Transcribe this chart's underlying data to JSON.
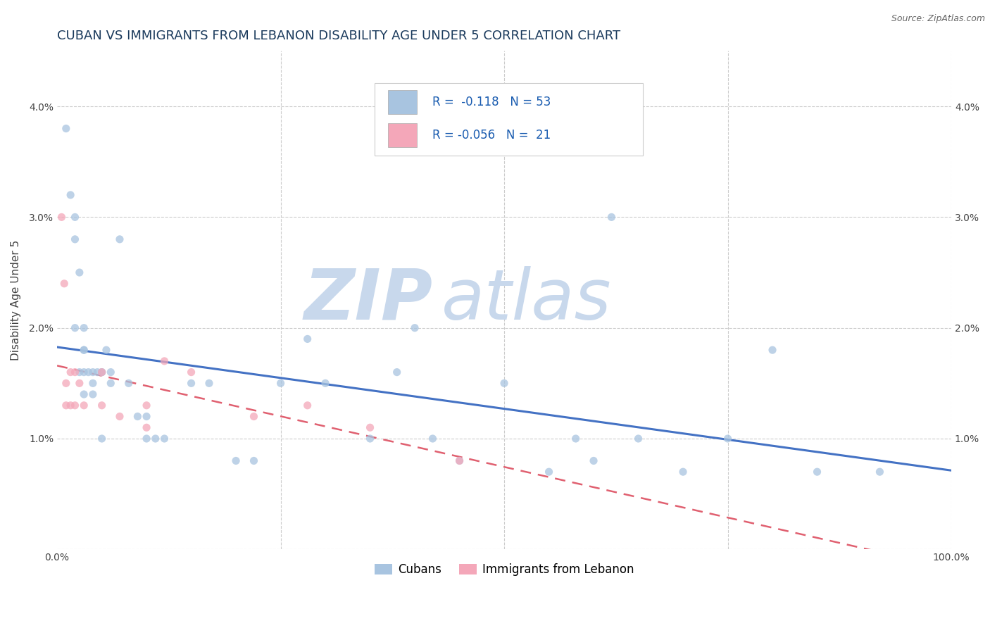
{
  "title": "CUBAN VS IMMIGRANTS FROM LEBANON DISABILITY AGE UNDER 5 CORRELATION CHART",
  "source": "Source: ZipAtlas.com",
  "ylabel": "Disability Age Under 5",
  "legend_label1": "Cubans",
  "legend_label2": "Immigrants from Lebanon",
  "r1": "-0.118",
  "n1": "53",
  "r2": "-0.056",
  "n2": "21",
  "xlim": [
    0,
    1.0
  ],
  "ylim": [
    0,
    0.045
  ],
  "xticks": [
    0.0,
    0.25,
    0.5,
    0.75,
    1.0
  ],
  "xticklabels": [
    "0.0%",
    "",
    "",
    "",
    "100.0%"
  ],
  "yticks": [
    0.0,
    0.01,
    0.02,
    0.03,
    0.04
  ],
  "yticklabels": [
    "",
    "1.0%",
    "2.0%",
    "3.0%",
    "4.0%"
  ],
  "color_blue": "#a8c4e0",
  "color_pink": "#f4a7b9",
  "line_blue": "#4472c4",
  "line_pink": "#e06070",
  "background_color": "#ffffff",
  "grid_color": "#cccccc",
  "cubans_x": [
    0.01,
    0.015,
    0.02,
    0.025,
    0.03,
    0.03,
    0.03,
    0.03,
    0.035,
    0.04,
    0.04,
    0.045,
    0.05,
    0.05,
    0.055,
    0.06,
    0.02,
    0.02,
    0.025,
    0.03,
    0.04,
    0.05,
    0.06,
    0.07,
    0.08,
    0.09,
    0.1,
    0.1,
    0.11,
    0.12,
    0.15,
    0.17,
    0.2,
    0.22,
    0.25,
    0.28,
    0.3,
    0.35,
    0.38,
    0.4,
    0.42,
    0.45,
    0.5,
    0.55,
    0.58,
    0.6,
    0.62,
    0.65,
    0.7,
    0.75,
    0.8,
    0.85,
    0.92
  ],
  "cubans_y": [
    0.038,
    0.032,
    0.02,
    0.016,
    0.02,
    0.018,
    0.016,
    0.014,
    0.016,
    0.015,
    0.014,
    0.016,
    0.016,
    0.01,
    0.018,
    0.015,
    0.03,
    0.028,
    0.025,
    0.018,
    0.016,
    0.016,
    0.016,
    0.028,
    0.015,
    0.012,
    0.012,
    0.01,
    0.01,
    0.01,
    0.015,
    0.015,
    0.008,
    0.008,
    0.015,
    0.019,
    0.015,
    0.01,
    0.016,
    0.02,
    0.01,
    0.008,
    0.015,
    0.007,
    0.01,
    0.008,
    0.03,
    0.01,
    0.007,
    0.01,
    0.018,
    0.007,
    0.007
  ],
  "lebanon_x": [
    0.005,
    0.008,
    0.01,
    0.01,
    0.015,
    0.015,
    0.02,
    0.02,
    0.025,
    0.03,
    0.05,
    0.05,
    0.07,
    0.1,
    0.1,
    0.12,
    0.15,
    0.22,
    0.28,
    0.35,
    0.45
  ],
  "lebanon_y": [
    0.03,
    0.024,
    0.015,
    0.013,
    0.016,
    0.013,
    0.016,
    0.013,
    0.015,
    0.013,
    0.016,
    0.013,
    0.012,
    0.013,
    0.011,
    0.017,
    0.016,
    0.012,
    0.013,
    0.011,
    0.008
  ],
  "watermark_zip": "ZIP",
  "watermark_atlas": "atlas",
  "watermark_color_zip": "#c8d8ec",
  "watermark_color_atlas": "#c8d8ec",
  "title_fontsize": 13,
  "axis_label_fontsize": 11,
  "tick_fontsize": 10,
  "legend_fontsize": 12,
  "scatter_size": 65,
  "scatter_alpha": 0.75
}
